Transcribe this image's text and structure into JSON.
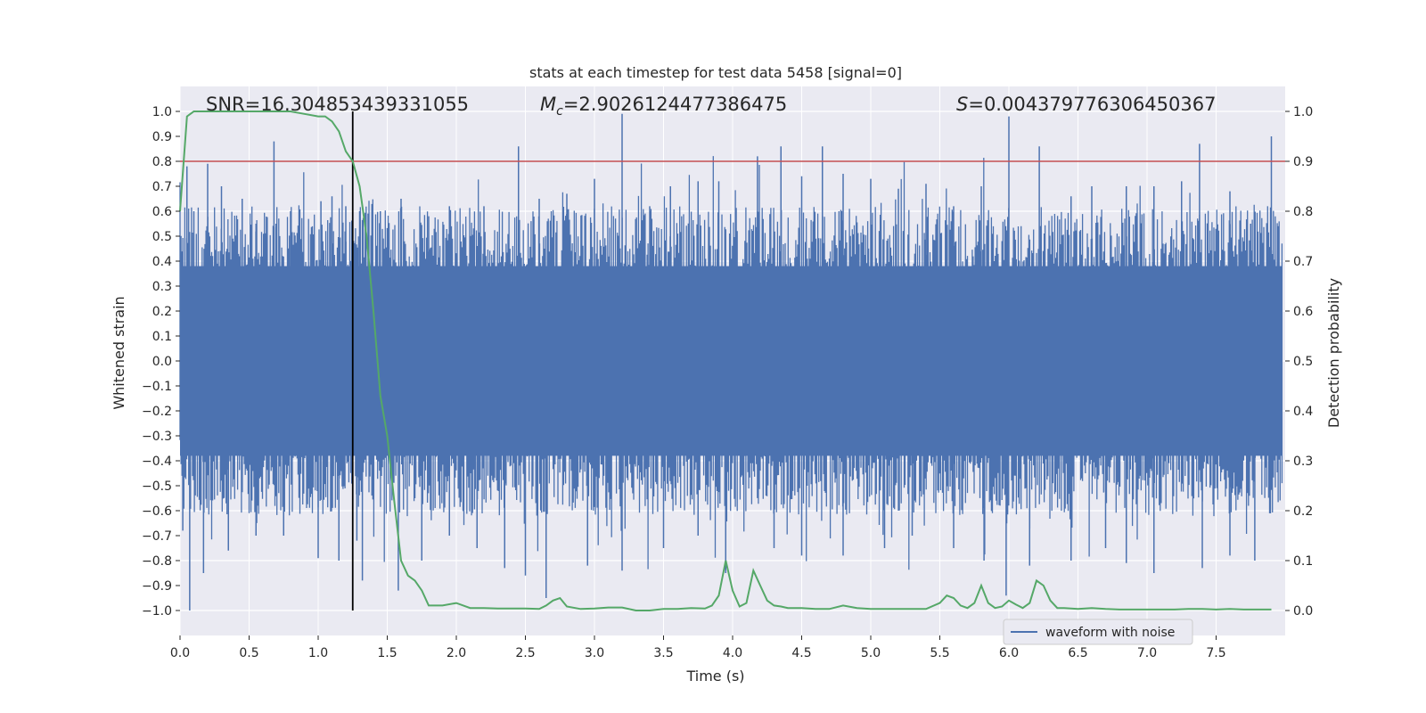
{
  "chart_data": {
    "type": "line",
    "title": "stats at each timestep for test data 5458 [signal=0]",
    "xlabel": "Time (s)",
    "ylabel_left": "Whitened strain",
    "ylabel_right": "Detection probability",
    "xlim": [
      0.0,
      8.0
    ],
    "ylim_left": [
      -1.1,
      1.1
    ],
    "ylim_right": [
      -0.05,
      1.05
    ],
    "x_ticks": [
      "0.0",
      "0.5",
      "1.0",
      "1.5",
      "2.0",
      "2.5",
      "3.0",
      "3.5",
      "4.0",
      "4.5",
      "5.0",
      "5.5",
      "6.0",
      "6.5",
      "7.0",
      "7.5"
    ],
    "y_left_ticks": [
      "1.0",
      "0.9",
      "0.8",
      "0.7",
      "0.6",
      "0.5",
      "0.4",
      "0.3",
      "0.2",
      "0.1",
      "0.0",
      "−0.1",
      "−0.2",
      "−0.3",
      "−0.4",
      "−0.5",
      "−0.6",
      "−0.7",
      "−0.8",
      "−0.9",
      "−1.0"
    ],
    "y_right_ticks": [
      "1.0",
      "0.9",
      "0.8",
      "0.7",
      "0.6",
      "0.5",
      "0.4",
      "0.3",
      "0.2",
      "0.1",
      "0.0"
    ],
    "grid": true,
    "annotations": {
      "snr": "SNR=16.304853439331055",
      "mc_symbol": "M",
      "mc_sub": "c",
      "mc_value": "=2.9026124477386475",
      "s_symbol": "S",
      "s_value": "=0.004379776306450367"
    },
    "threshold": {
      "axis": "right",
      "value": 0.9,
      "color": "#c44e52"
    },
    "vline": {
      "x": 1.25,
      "y_from": -1.0,
      "y_to": 1.0,
      "color": "#000000"
    },
    "waveform": {
      "name": "waveform with noise",
      "color": "#4c72b0",
      "core_band": [
        -0.38,
        0.38
      ],
      "spikes_up": [
        [
          0.05,
          0.78
        ],
        [
          0.1,
          0.6
        ],
        [
          0.2,
          0.79
        ],
        [
          0.3,
          0.7
        ],
        [
          0.45,
          0.65
        ],
        [
          0.55,
          0.55
        ],
        [
          0.68,
          0.88
        ],
        [
          0.8,
          0.6
        ],
        [
          1.02,
          0.64
        ],
        [
          1.1,
          0.66
        ],
        [
          1.2,
          0.62
        ],
        [
          1.3,
          0.6
        ],
        [
          1.45,
          0.6
        ],
        [
          1.6,
          0.65
        ],
        [
          1.8,
          0.58
        ],
        [
          1.95,
          0.62
        ],
        [
          2.2,
          0.62
        ],
        [
          2.45,
          0.86
        ],
        [
          2.6,
          0.65
        ],
        [
          2.8,
          0.67
        ],
        [
          3.0,
          0.73
        ],
        [
          3.2,
          0.99
        ],
        [
          3.4,
          0.62
        ],
        [
          3.55,
          0.7
        ],
        [
          3.75,
          0.72
        ],
        [
          3.9,
          0.72
        ],
        [
          4.18,
          0.82
        ],
        [
          4.35,
          0.86
        ],
        [
          4.5,
          0.74
        ],
        [
          4.65,
          0.86
        ],
        [
          4.8,
          0.75
        ],
        [
          5.0,
          0.73
        ],
        [
          5.2,
          0.69
        ],
        [
          5.4,
          0.71
        ],
        [
          5.6,
          0.62
        ],
        [
          5.8,
          0.7
        ],
        [
          6.0,
          0.98
        ],
        [
          6.22,
          0.86
        ],
        [
          6.45,
          0.66
        ],
        [
          6.6,
          0.7
        ],
        [
          6.85,
          0.7
        ],
        [
          7.05,
          0.7
        ],
        [
          7.25,
          0.72
        ],
        [
          7.38,
          0.87
        ],
        [
          7.6,
          0.68
        ],
        [
          7.75,
          0.55
        ],
        [
          7.9,
          0.9
        ]
      ],
      "spikes_down": [
        [
          0.02,
          -0.68
        ],
        [
          0.07,
          -1.0
        ],
        [
          0.17,
          -0.85
        ],
        [
          0.35,
          -0.76
        ],
        [
          0.55,
          -0.7
        ],
        [
          0.75,
          -0.7
        ],
        [
          1.0,
          -0.79
        ],
        [
          1.15,
          -0.8
        ],
        [
          1.28,
          -0.72
        ],
        [
          1.32,
          -0.88
        ],
        [
          1.58,
          -0.92
        ],
        [
          1.75,
          -0.8
        ],
        [
          1.95,
          -0.7
        ],
        [
          2.15,
          -0.75
        ],
        [
          2.35,
          -0.83
        ],
        [
          2.5,
          -0.86
        ],
        [
          2.65,
          -0.95
        ],
        [
          2.95,
          -0.82
        ],
        [
          3.2,
          -0.84
        ],
        [
          3.5,
          -0.75
        ],
        [
          3.75,
          -0.7
        ],
        [
          3.95,
          -0.85
        ],
        [
          4.3,
          -0.75
        ],
        [
          4.5,
          -0.78
        ],
        [
          4.8,
          -0.78
        ],
        [
          5.1,
          -0.75
        ],
        [
          5.3,
          -0.7
        ],
        [
          5.6,
          -0.75
        ],
        [
          5.82,
          -0.8
        ],
        [
          5.98,
          -0.94
        ],
        [
          6.15,
          -0.82
        ],
        [
          6.45,
          -0.8
        ],
        [
          6.7,
          -0.75
        ],
        [
          6.85,
          -0.81
        ],
        [
          7.05,
          -0.85
        ],
        [
          7.4,
          -0.83
        ],
        [
          7.6,
          -0.78
        ],
        [
          7.78,
          -0.8
        ]
      ]
    },
    "probability": {
      "name": "detection probability",
      "color": "#55a868",
      "x": [
        0.0,
        0.05,
        0.1,
        0.15,
        0.2,
        0.3,
        0.4,
        0.5,
        0.6,
        0.7,
        0.8,
        0.9,
        1.0,
        1.05,
        1.1,
        1.15,
        1.2,
        1.25,
        1.3,
        1.35,
        1.4,
        1.45,
        1.5,
        1.55,
        1.6,
        1.65,
        1.7,
        1.75,
        1.8,
        1.9,
        2.0,
        2.1,
        2.2,
        2.3,
        2.4,
        2.5,
        2.6,
        2.65,
        2.7,
        2.75,
        2.8,
        2.9,
        3.0,
        3.1,
        3.2,
        3.3,
        3.4,
        3.5,
        3.6,
        3.7,
        3.8,
        3.85,
        3.9,
        3.95,
        4.0,
        4.05,
        4.1,
        4.15,
        4.2,
        4.25,
        4.3,
        4.35,
        4.4,
        4.5,
        4.6,
        4.7,
        4.8,
        4.9,
        5.0,
        5.1,
        5.2,
        5.3,
        5.4,
        5.5,
        5.55,
        5.6,
        5.65,
        5.7,
        5.75,
        5.8,
        5.85,
        5.9,
        5.95,
        6.0,
        6.05,
        6.1,
        6.15,
        6.2,
        6.25,
        6.3,
        6.35,
        6.4,
        6.5,
        6.6,
        6.7,
        6.8,
        6.9,
        7.0,
        7.1,
        7.2,
        7.3,
        7.4,
        7.5,
        7.6,
        7.7,
        7.8,
        7.9
      ],
      "y": [
        0.8,
        0.99,
        1.0,
        1.0,
        1.0,
        1.0,
        1.0,
        1.0,
        1.0,
        1.0,
        1.0,
        0.995,
        0.99,
        0.99,
        0.98,
        0.96,
        0.92,
        0.9,
        0.85,
        0.75,
        0.6,
        0.43,
        0.35,
        0.22,
        0.1,
        0.07,
        0.06,
        0.04,
        0.01,
        0.01,
        0.015,
        0.005,
        0.005,
        0.004,
        0.004,
        0.004,
        0.003,
        0.01,
        0.02,
        0.025,
        0.008,
        0.003,
        0.004,
        0.006,
        0.006,
        0.0,
        0.0,
        0.003,
        0.003,
        0.005,
        0.004,
        0.01,
        0.03,
        0.1,
        0.04,
        0.008,
        0.015,
        0.08,
        0.05,
        0.02,
        0.01,
        0.008,
        0.005,
        0.005,
        0.003,
        0.003,
        0.01,
        0.005,
        0.003,
        0.003,
        0.003,
        0.003,
        0.003,
        0.015,
        0.03,
        0.025,
        0.01,
        0.005,
        0.015,
        0.05,
        0.015,
        0.005,
        0.008,
        0.02,
        0.012,
        0.005,
        0.015,
        0.06,
        0.05,
        0.02,
        0.005,
        0.005,
        0.003,
        0.005,
        0.003,
        0.002,
        0.002,
        0.002,
        0.002,
        0.002,
        0.003,
        0.003,
        0.002,
        0.003,
        0.002,
        0.002,
        0.002
      ]
    },
    "legend": {
      "label": "waveform with noise",
      "placement": "lower-right"
    }
  }
}
